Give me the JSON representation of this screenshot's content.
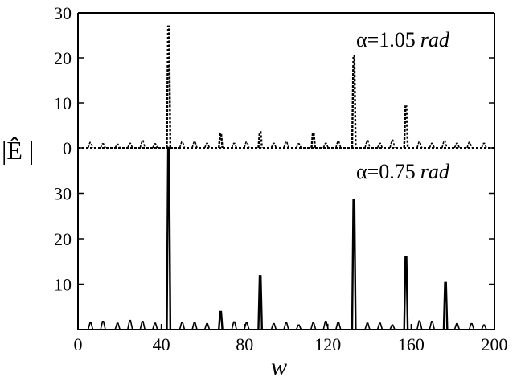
{
  "chart_data": [
    {
      "type": "line",
      "panel": "top",
      "annotation": "α=1.05 rad",
      "annotation_value": "α=1.05",
      "annotation_unit": "rad",
      "line_style": "dashed",
      "xlim": [
        0,
        200
      ],
      "ylim": [
        0,
        30
      ],
      "yticks": [
        0,
        10,
        20,
        30
      ],
      "ytick_labels": [
        "0",
        "10",
        "20",
        "30"
      ],
      "series": [
        {
          "peaks": [
            {
              "x": 6,
              "y": 1.2
            },
            {
              "x": 12,
              "y": 0.9
            },
            {
              "x": 19,
              "y": 0.8
            },
            {
              "x": 25,
              "y": 1.0
            },
            {
              "x": 31,
              "y": 1.6
            },
            {
              "x": 37,
              "y": 0.9
            },
            {
              "x": 43.5,
              "y": 27.0
            },
            {
              "x": 50,
              "y": 1.3
            },
            {
              "x": 56,
              "y": 1.4
            },
            {
              "x": 62,
              "y": 1.0
            },
            {
              "x": 68.5,
              "y": 3.2
            },
            {
              "x": 75,
              "y": 1.0
            },
            {
              "x": 81,
              "y": 1.3
            },
            {
              "x": 87.5,
              "y": 3.5
            },
            {
              "x": 94,
              "y": 1.0
            },
            {
              "x": 100,
              "y": 1.4
            },
            {
              "x": 106,
              "y": 0.9
            },
            {
              "x": 113,
              "y": 3.3
            },
            {
              "x": 119,
              "y": 1.0
            },
            {
              "x": 125,
              "y": 1.5
            },
            {
              "x": 132.5,
              "y": 20.5
            },
            {
              "x": 139,
              "y": 1.6
            },
            {
              "x": 145,
              "y": 1.0
            },
            {
              "x": 151,
              "y": 1.7
            },
            {
              "x": 157.5,
              "y": 9.2
            },
            {
              "x": 164,
              "y": 1.3
            },
            {
              "x": 170,
              "y": 1.0
            },
            {
              "x": 176,
              "y": 1.6
            },
            {
              "x": 182,
              "y": 1.0
            },
            {
              "x": 188,
              "y": 1.2
            },
            {
              "x": 195,
              "y": 1.0
            }
          ]
        }
      ]
    },
    {
      "type": "line",
      "panel": "bottom",
      "annotation": "α=0.75 rad",
      "annotation_value": "α=0.75",
      "annotation_unit": "rad",
      "line_style": "solid",
      "xlim": [
        0,
        200
      ],
      "ylim": [
        0,
        40
      ],
      "yticks": [
        10,
        20,
        30
      ],
      "ytick_labels": [
        "10",
        "20",
        "30"
      ],
      "xticks": [
        0,
        40,
        80,
        120,
        160,
        200
      ],
      "xtick_labels": [
        "0",
        "40",
        "80",
        "120",
        "160",
        "200"
      ],
      "xlabel": "w",
      "ylabel": "|Ê |",
      "series": [
        {
          "peaks": [
            {
              "x": 6,
              "y": 1.5
            },
            {
              "x": 12,
              "y": 1.8
            },
            {
              "x": 19,
              "y": 1.4
            },
            {
              "x": 25,
              "y": 2.0
            },
            {
              "x": 31,
              "y": 1.8
            },
            {
              "x": 37,
              "y": 1.4
            },
            {
              "x": 43.5,
              "y": 40.0
            },
            {
              "x": 50,
              "y": 1.6
            },
            {
              "x": 56,
              "y": 1.6
            },
            {
              "x": 62,
              "y": 1.3
            },
            {
              "x": 68.5,
              "y": 3.9
            },
            {
              "x": 75,
              "y": 1.7
            },
            {
              "x": 81,
              "y": 1.5
            },
            {
              "x": 87.5,
              "y": 11.8
            },
            {
              "x": 94,
              "y": 1.3
            },
            {
              "x": 100,
              "y": 1.5
            },
            {
              "x": 106,
              "y": 1.0
            },
            {
              "x": 113,
              "y": 1.5
            },
            {
              "x": 119,
              "y": 1.8
            },
            {
              "x": 125,
              "y": 1.6
            },
            {
              "x": 132.5,
              "y": 28.5
            },
            {
              "x": 139,
              "y": 1.4
            },
            {
              "x": 145,
              "y": 1.4
            },
            {
              "x": 151,
              "y": 1.0
            },
            {
              "x": 157.5,
              "y": 16.0
            },
            {
              "x": 164,
              "y": 1.9
            },
            {
              "x": 170,
              "y": 1.8
            },
            {
              "x": 176.5,
              "y": 10.3
            },
            {
              "x": 182,
              "y": 1.3
            },
            {
              "x": 189,
              "y": 1.3
            },
            {
              "x": 195,
              "y": 1.0
            }
          ]
        }
      ]
    }
  ]
}
